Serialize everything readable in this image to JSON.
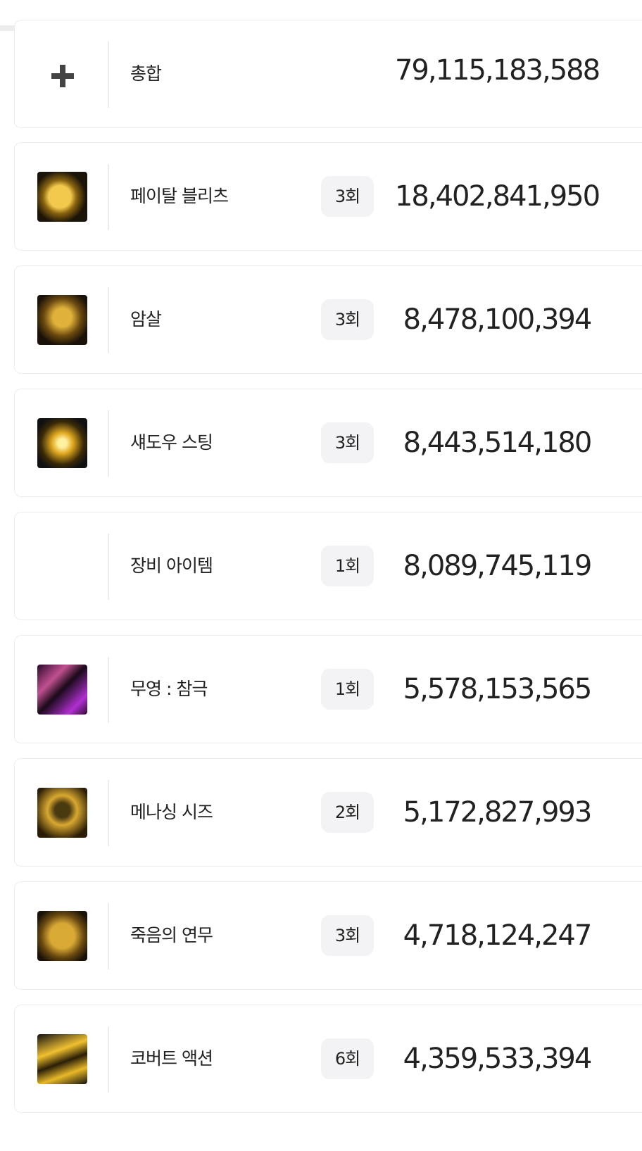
{
  "total": {
    "label": "총합",
    "value": "79,115,183,588"
  },
  "skills": [
    {
      "name": "페이탈 블리츠",
      "count": "3회",
      "damage": "18,402,841,950"
    },
    {
      "name": "암살",
      "count": "3회",
      "damage": "8,478,100,394"
    },
    {
      "name": "섀도우 스팅",
      "count": "3회",
      "damage": "8,443,514,180"
    },
    {
      "name": "장비 아이템",
      "count": "1회",
      "damage": "8,089,745,119"
    },
    {
      "name": "무영 : 참극",
      "count": "1회",
      "damage": "5,578,153,565"
    },
    {
      "name": "메나싱 시즈",
      "count": "2회",
      "damage": "5,172,827,993"
    },
    {
      "name": "죽음의 연무",
      "count": "3회",
      "damage": "4,718,124,247"
    },
    {
      "name": "코버트 액션",
      "count": "6회",
      "damage": "4,359,533,394"
    }
  ]
}
